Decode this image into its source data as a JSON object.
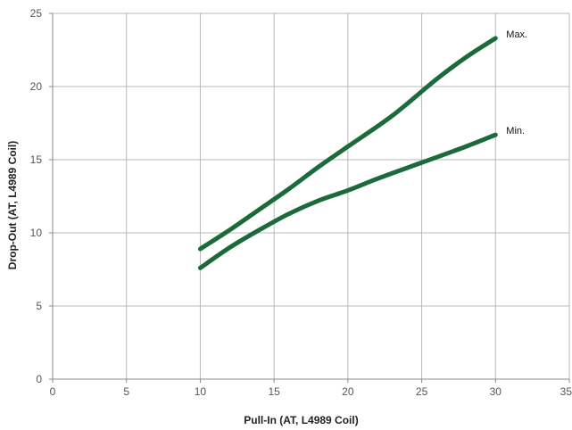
{
  "chart_data": {
    "type": "line",
    "xlabel": "Pull-In (AT, L4989 Coil)",
    "ylabel": "Drop-Out (AT, L4989 Coil)",
    "xlim": [
      0,
      35
    ],
    "ylim": [
      0,
      25
    ],
    "x_ticks": [
      0,
      5,
      10,
      15,
      20,
      25,
      30,
      35
    ],
    "y_ticks": [
      0,
      5,
      10,
      15,
      20,
      25
    ],
    "x_tick_labels": [
      "0",
      "5",
      "10",
      "15",
      "20",
      "25",
      "30",
      "35"
    ],
    "y_tick_labels": [
      "0",
      "5",
      "10",
      "15",
      "20",
      "25"
    ],
    "grid": true,
    "line_color": "#1b6b3a",
    "series": [
      {
        "name": "Max.",
        "x": [
          10,
          12,
          14,
          16,
          18,
          20,
          23,
          26,
          28,
          30
        ],
        "y": [
          8.9,
          10.2,
          11.6,
          13.0,
          14.5,
          15.9,
          18.0,
          20.5,
          22.0,
          23.3
        ]
      },
      {
        "name": "Min.",
        "x": [
          10,
          12,
          14,
          16,
          18,
          20,
          22,
          25,
          28,
          30
        ],
        "y": [
          7.6,
          9.0,
          10.2,
          11.3,
          12.2,
          12.9,
          13.7,
          14.8,
          15.9,
          16.7
        ]
      }
    ]
  }
}
